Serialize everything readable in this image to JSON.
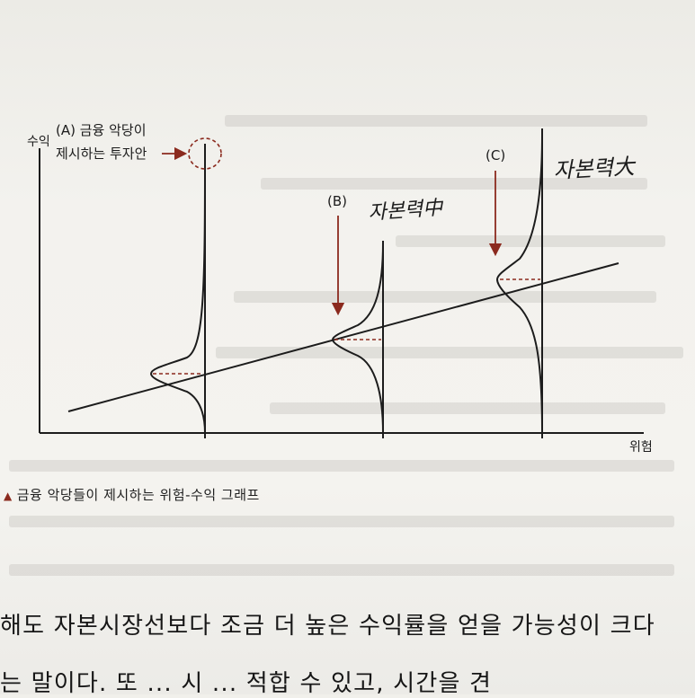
{
  "figure": {
    "y_axis_label": "수익",
    "x_axis_label": "위험",
    "label_a_line1": "(A) 금융 악당이",
    "label_a_line2": "제시하는 투자안",
    "label_b": "(B)",
    "label_c": "(C)",
    "handwritten_b": "자본력中",
    "handwritten_c": "자본력大"
  },
  "caption": {
    "marker": "▲",
    "text": "금융 악당들이 제시하는 위험-수익 그래프"
  },
  "body": {
    "line1": "해도 자본시장선보다 조금 더 높은 수익률을 얻을 가능성이 크다",
    "line2": "는 말이다. 또 ... 시 ... 적합 수 있고, 시간을 견"
  },
  "colors": {
    "ink": "#1c1c1c",
    "accent": "#8b2a1e",
    "paper": "#f2f1ec"
  }
}
